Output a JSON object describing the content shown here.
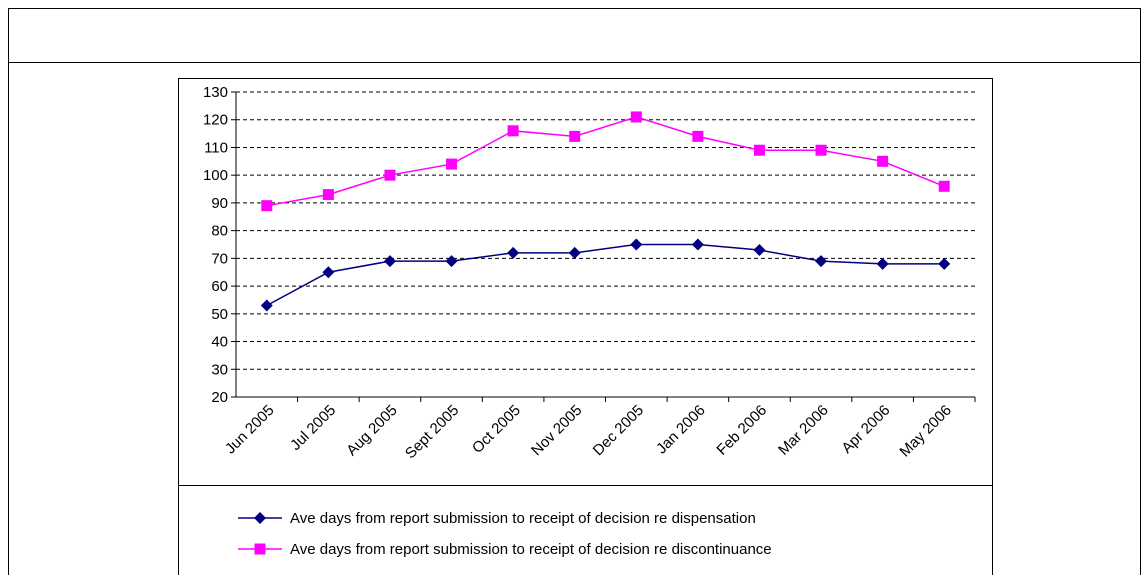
{
  "chart_data": {
    "type": "line",
    "categories": [
      "Jun 2005",
      "Jul 2005",
      "Aug 2005",
      "Sept 2005",
      "Oct 2005",
      "Nov 2005",
      "Dec 2005",
      "Jan 2006",
      "Feb 2006",
      "Mar 2006",
      "Apr 2006",
      "May 2006"
    ],
    "series": [
      {
        "name": "Ave days from report submission to receipt of decision re dispensation",
        "color": "#000080",
        "marker": "diamond",
        "values": [
          53,
          65,
          69,
          69,
          72,
          72,
          75,
          75,
          73,
          69,
          68,
          68
        ]
      },
      {
        "name": "Ave days from report submission to receipt of decision re discontinuance",
        "color": "#ff00ff",
        "marker": "square",
        "values": [
          89,
          93,
          100,
          104,
          116,
          114,
          121,
          114,
          109,
          109,
          105,
          96
        ]
      }
    ],
    "ylim": [
      20,
      130
    ],
    "yticks": [
      20,
      30,
      40,
      50,
      60,
      70,
      80,
      90,
      100,
      110,
      120,
      130
    ],
    "grid": true
  }
}
